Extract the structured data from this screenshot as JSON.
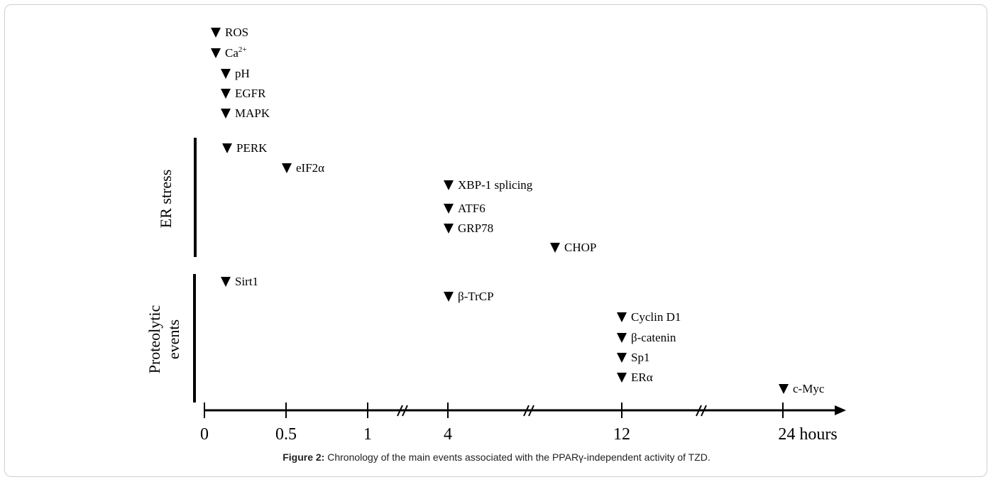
{
  "figure": {
    "caption_label": "Figure 2:",
    "caption_text": " Chronology of the main events associated with the PPARγ-independent activity of TZD."
  },
  "axis": {
    "unit_label": "hours",
    "ticks": [
      "0",
      "0.5",
      "1",
      "4",
      "12",
      "24 hours"
    ]
  },
  "groups": [
    {
      "label": "ER stress"
    },
    {
      "label": "Proteolytic events"
    }
  ],
  "events": [
    {
      "label": "ROS"
    },
    {
      "label": "Ca",
      "sup": "2+"
    },
    {
      "label": "pH"
    },
    {
      "label": "EGFR"
    },
    {
      "label": "MAPK"
    },
    {
      "label": "PERK",
      "group": "ER stress"
    },
    {
      "label": "eIF2α",
      "group": "ER stress"
    },
    {
      "label": "XBP-1 splicing",
      "group": "ER stress"
    },
    {
      "label": "ATF6",
      "group": "ER stress"
    },
    {
      "label": "GRP78",
      "group": "ER stress"
    },
    {
      "label": "CHOP",
      "group": "ER stress"
    },
    {
      "label": "Sirt1",
      "group": "Proteolytic events"
    },
    {
      "label": "β-TrCP",
      "group": "Proteolytic events"
    },
    {
      "label": "Cyclin D1",
      "group": "Proteolytic events"
    },
    {
      "label": "β-catenin",
      "group": "Proteolytic events"
    },
    {
      "label": "Sp1",
      "group": "Proteolytic events"
    },
    {
      "label": "ERα",
      "group": "Proteolytic events"
    },
    {
      "label": "c-Myc",
      "group": "Proteolytic events"
    }
  ]
}
